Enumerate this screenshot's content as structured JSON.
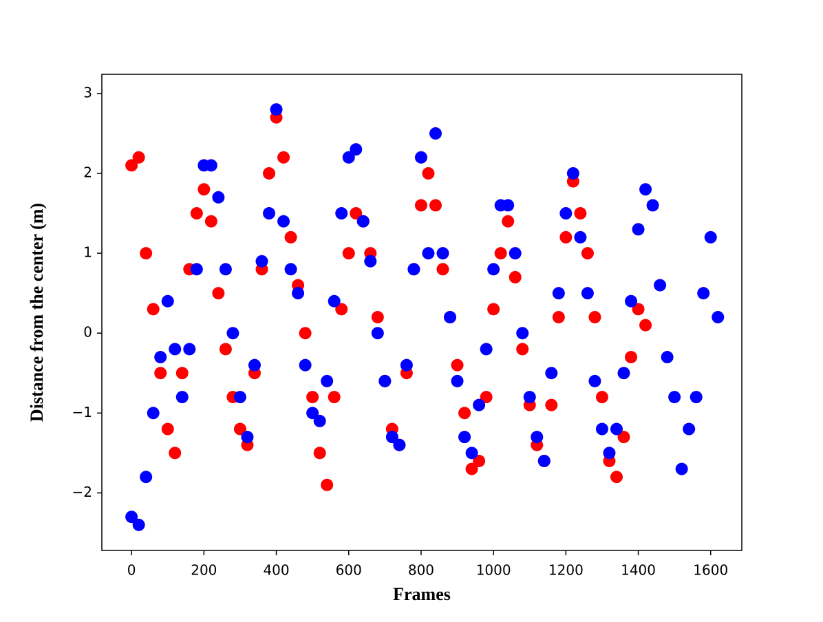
{
  "chart_data": {
    "type": "scatter",
    "xlabel": "Frames",
    "ylabel": "Distance from the center (m)",
    "xlim": [
      -82,
      1686
    ],
    "ylim": [
      -2.72,
      3.24
    ],
    "xticks": [
      0,
      200,
      400,
      600,
      800,
      1000,
      1200,
      1400,
      1600
    ],
    "yticks": [
      {
        "value": -2,
        "label": "−2"
      },
      {
        "value": -1,
        "label": "−1"
      },
      0,
      1,
      2,
      3
    ],
    "grid": false,
    "x": [
      0,
      20,
      40,
      60,
      80,
      100,
      120,
      140,
      160,
      180,
      200,
      220,
      240,
      260,
      280,
      300,
      320,
      340,
      360,
      380,
      400,
      420,
      440,
      460,
      480,
      500,
      520,
      540,
      560,
      580,
      600,
      620,
      640,
      660,
      680,
      700,
      720,
      740,
      760,
      780,
      800,
      820,
      840,
      860,
      880,
      900,
      920,
      940,
      960,
      980,
      1000,
      1020,
      1040,
      1060,
      1080,
      1100,
      1120,
      1140,
      1160,
      1180,
      1200,
      1220,
      1240,
      1260,
      1280,
      1300,
      1320,
      1340,
      1360,
      1380,
      1400,
      1420,
      1440,
      1460,
      1480,
      1500,
      1520,
      1540,
      1560,
      1580,
      1600,
      1620
    ],
    "series": [
      {
        "color": "#ff0000",
        "values": [
          2.1,
          2.2,
          1.0,
          0.3,
          -0.5,
          -1.2,
          -1.5,
          -0.5,
          0.8,
          1.5,
          1.8,
          1.4,
          0.5,
          -0.2,
          -0.8,
          -1.2,
          -1.4,
          -0.5,
          0.8,
          2.0,
          2.7,
          2.2,
          1.2,
          0.6,
          0.0,
          -0.8,
          -1.5,
          -1.9,
          -0.8,
          0.3,
          1.0,
          1.5,
          1.4,
          1.0,
          0.2,
          -0.6,
          -1.2,
          -1.4,
          -0.5,
          0.8,
          1.6,
          2.0,
          1.6,
          0.8,
          0.2,
          -0.4,
          -1.0,
          -1.7,
          -1.6,
          -0.8,
          0.3,
          1.0,
          1.4,
          0.7,
          -0.2,
          -0.9,
          -1.4,
          -1.6,
          -0.9,
          0.2,
          1.2,
          1.9,
          1.5,
          1.0,
          0.2,
          -0.8,
          -1.6,
          -1.8,
          -1.3,
          -0.3,
          0.3,
          0.1,
          null,
          null,
          null,
          null,
          null,
          null,
          null,
          null,
          null,
          null
        ]
      },
      {
        "color": "#0000ff",
        "values": [
          -2.3,
          -2.4,
          -1.8,
          -1.0,
          -0.3,
          0.4,
          -0.2,
          -0.8,
          -0.2,
          0.8,
          2.1,
          2.1,
          1.7,
          0.8,
          0.0,
          -0.8,
          -1.3,
          -0.4,
          0.9,
          1.5,
          2.8,
          1.4,
          0.8,
          0.5,
          -0.4,
          -1.0,
          -1.1,
          -0.6,
          0.4,
          1.5,
          2.2,
          2.3,
          1.4,
          0.9,
          0.0,
          -0.6,
          -1.3,
          -1.4,
          -0.4,
          0.8,
          2.2,
          1.0,
          2.5,
          1.0,
          0.2,
          -0.6,
          -1.3,
          -1.5,
          -0.9,
          -0.2,
          0.8,
          1.6,
          1.6,
          1.0,
          0.0,
          -0.8,
          -1.3,
          -1.6,
          -0.5,
          0.5,
          1.5,
          2.0,
          1.2,
          0.5,
          -0.6,
          -1.2,
          -1.5,
          -1.2,
          -0.5,
          0.4,
          1.3,
          1.8,
          1.6,
          0.6,
          -0.3,
          -0.8,
          -1.7,
          -1.2,
          -0.8,
          0.5,
          1.2,
          0.2
        ]
      }
    ]
  }
}
